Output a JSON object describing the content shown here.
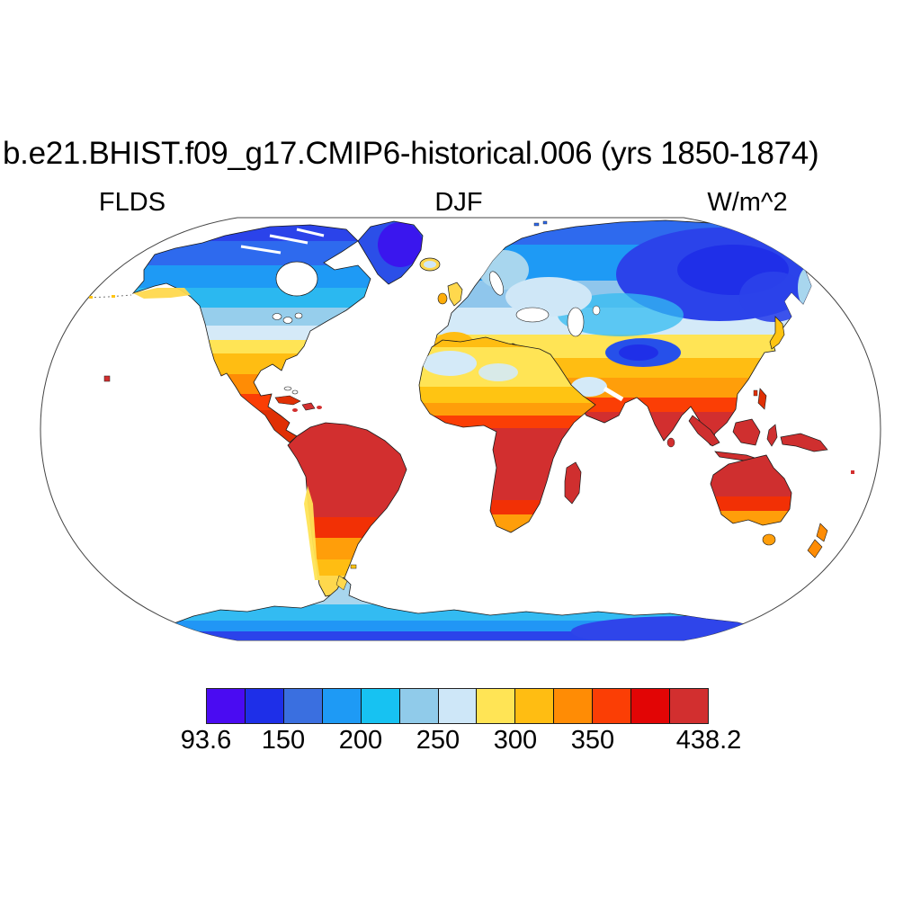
{
  "header": {
    "title": "b.e21.BHIST.f09_g17.CMIP6-historical.006 (yrs 1850-1874)",
    "variable": "FLDS",
    "season": "DJF",
    "units": "W/m^2"
  },
  "colorbar": {
    "segments": [
      "#4A0BF2",
      "#1E2FE8",
      "#3A6FE0",
      "#1E9AF5",
      "#17C2F2",
      "#90CBEA",
      "#CEE7F8",
      "#FFE455",
      "#FFBD12",
      "#FF8C05",
      "#FB3E05",
      "#E20505",
      "#D22F2F"
    ],
    "ticks": [
      {
        "label": "93.6",
        "boundary_index": 0
      },
      {
        "label": "150",
        "boundary_index": 2
      },
      {
        "label": "200",
        "boundary_index": 4
      },
      {
        "label": "250",
        "boundary_index": 6
      },
      {
        "label": "300",
        "boundary_index": 8
      },
      {
        "label": "350",
        "boundary_index": 10
      },
      {
        "label": "438.2",
        "boundary_index": 13
      }
    ],
    "n_boundaries": 13
  },
  "chart_data": {
    "type": "heatmap",
    "title": "b.e21.BHIST.f09_g17.CMIP6-historical.006 (yrs 1850-1874)",
    "variable": "FLDS",
    "season": "DJF",
    "units": "W/m^2",
    "projection": "Robinson world map, land-only filled contours, white ocean",
    "data_min": 93.6,
    "data_max": 438.2,
    "contour_levels": [
      125,
      150,
      175,
      200,
      225,
      250,
      275,
      300,
      325,
      350,
      375,
      400
    ],
    "palette": [
      "#4A0BF2",
      "#1E2FE8",
      "#3A6FE0",
      "#1E9AF5",
      "#17C2F2",
      "#90CBEA",
      "#CEE7F8",
      "#FFE455",
      "#FFBD12",
      "#FF8C05",
      "#FB3E05",
      "#E20505",
      "#D22F2F"
    ],
    "colorbar_tick_labels": [
      "93.6",
      "150",
      "200",
      "250",
      "300",
      "350",
      "438.2"
    ],
    "legend_position": "bottom horizontal colorbar",
    "regions_summary": [
      {
        "region": "Greenland / Canadian Arctic",
        "approx_values": "100-175 W/m^2 (deep blue-violet)"
      },
      {
        "region": "Central/NE Siberia and Tibetan Plateau",
        "approx_values": "125-175 W/m^2 (dark blue)"
      },
      {
        "region": "Mid-latitude N. America and Russia",
        "approx_values": "175-250 W/m^2 (cyan to pale blue)"
      },
      {
        "region": "Europe, southern USA, N. China",
        "approx_values": "275-325 W/m^2 (yellow to amber)"
      },
      {
        "region": "Sahara and central Arabia (dry air)",
        "approx_values": "225-275 W/m^2 (pale blue patches)"
      },
      {
        "region": "Mexico, Sahel, India, S. China",
        "approx_values": "325-400 W/m^2 (orange to red)"
      },
      {
        "region": "Tropics: S. America, equatorial Africa, SE Asia, N. Australia",
        "approx_values": "400-438 W/m^2 (dark red)"
      },
      {
        "region": "Patagonia, S. Australia, New Zealand",
        "approx_values": "300-375 W/m^2 (yellow-orange)"
      },
      {
        "region": "Antarctica",
        "approx_values": "100-250 W/m^2 (blue, darkest toward pole)"
      }
    ]
  }
}
